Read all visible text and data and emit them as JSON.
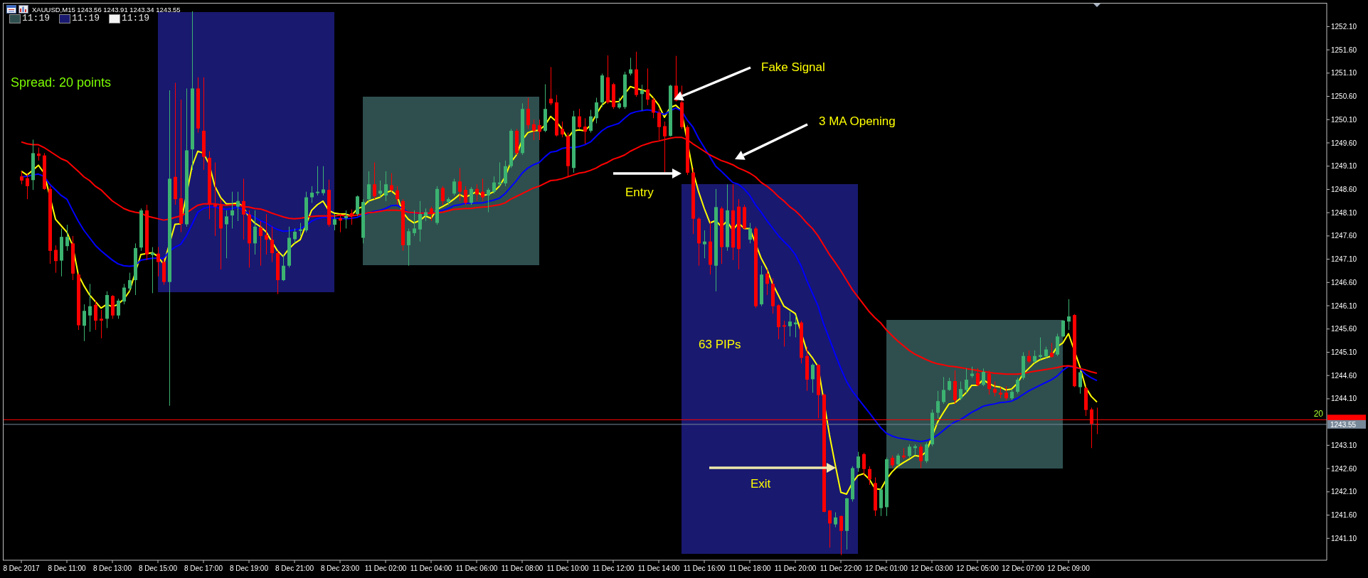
{
  "chart_data": {
    "type": "candlestick",
    "title": "XAUUSD,M15 1243.56 1243.91 1243.34 1243.55",
    "categories": [
      "8 Dec 2017",
      null,
      null,
      null,
      null,
      null,
      null,
      null,
      "8 Dec 11:00",
      null,
      null,
      null,
      null,
      null,
      null,
      null,
      "8 Dec 13:00",
      null,
      null,
      null,
      null,
      null,
      null,
      null,
      "8 Dec 15:00",
      null,
      null,
      null,
      null,
      null,
      null,
      null,
      "8 Dec 17:00",
      null,
      null,
      null,
      null,
      null,
      null,
      null,
      "8 Dec 19:00",
      null,
      null,
      null,
      null,
      null,
      null,
      null,
      "8 Dec 21:00",
      null,
      null,
      null,
      null,
      null,
      null,
      null,
      "8 Dec 23:00",
      null,
      null,
      null,
      null,
      null,
      null,
      null,
      "11 Dec 02:00",
      null,
      null,
      null,
      null,
      null,
      null,
      null,
      "11 Dec 04:00",
      null,
      null,
      null,
      null,
      null,
      null,
      null,
      "11 Dec 06:00",
      null,
      null,
      null,
      null,
      null,
      null,
      null,
      "11 Dec 08:00",
      null,
      null,
      null,
      null,
      null,
      null,
      null,
      "11 Dec 10:00",
      null,
      null,
      null,
      null,
      null,
      null,
      null,
      "11 Dec 12:00",
      null,
      null,
      null,
      null,
      null,
      null,
      null,
      "11 Dec 14:00",
      null,
      null,
      null,
      null,
      null,
      null,
      null,
      "11 Dec 16:00",
      null,
      null,
      null,
      null,
      null,
      null,
      null,
      "11 Dec 18:00",
      null,
      null,
      null,
      null,
      null,
      null,
      null,
      "11 Dec 20:00",
      null,
      null,
      null,
      null,
      null,
      null,
      null,
      "11 Dec 22:00",
      null,
      null,
      null,
      null,
      null,
      null,
      null,
      "12 Dec 01:00",
      null,
      null,
      null,
      null,
      null,
      null,
      null,
      "12 Dec 03:00",
      null,
      null,
      null,
      null,
      null,
      null,
      null,
      "12 Dec 05:00",
      null,
      null,
      null,
      null,
      null,
      null,
      null,
      "12 Dec 07:00",
      null,
      null,
      null,
      null,
      null,
      null,
      null,
      "12 Dec 09:00",
      null,
      null,
      null,
      null,
      null
    ],
    "ohlc": [
      [
        1248.88,
        1248.99,
        1248.71,
        1248.79
      ],
      [
        1248.84,
        1248.95,
        1248.39,
        1248.67
      ],
      [
        1248.8,
        1249.67,
        1248.59,
        1249.38
      ],
      [
        1249.37,
        1249.5,
        1249.22,
        1249.32
      ],
      [
        1249.33,
        1249.38,
        1248.59,
        1248.61
      ],
      [
        1248.61,
        1248.67,
        1247.0,
        1247.28
      ],
      [
        1247.3,
        1247.4,
        1246.81,
        1247.06
      ],
      [
        1247.07,
        1247.76,
        1246.73,
        1247.58
      ],
      [
        1247.38,
        1247.84,
        1247.28,
        1247.58
      ],
      [
        1247.44,
        1247.6,
        1246.65,
        1246.79
      ],
      [
        1246.77,
        1246.81,
        1245.58,
        1245.68
      ],
      [
        1245.67,
        1246.13,
        1245.34,
        1245.99
      ],
      [
        1245.89,
        1246.57,
        1245.54,
        1246.09
      ],
      [
        1246.12,
        1246.21,
        1245.58,
        1245.78
      ],
      [
        1245.82,
        1246.01,
        1245.4,
        1245.78
      ],
      [
        1245.82,
        1246.41,
        1245.62,
        1246.33
      ],
      [
        1246.31,
        1246.33,
        1245.82,
        1245.89
      ],
      [
        1245.89,
        1246.25,
        1245.82,
        1246.21
      ],
      [
        1246.19,
        1246.57,
        1246.13,
        1246.49
      ],
      [
        1246.47,
        1246.81,
        1246.41,
        1246.65
      ],
      [
        1246.65,
        1247.44,
        1246.33,
        1247.34
      ],
      [
        1247.35,
        1248.19,
        1247.28,
        1248.15
      ],
      [
        1248.15,
        1248.27,
        1247.08,
        1247.2
      ],
      [
        1247.19,
        1247.36,
        1246.37,
        1247.24
      ],
      [
        1247.22,
        1247.36,
        1246.73,
        1247.04
      ],
      [
        1247.04,
        1247.12,
        1246.55,
        1246.61
      ],
      [
        1246.61,
        1250.73,
        1243.95,
        1248.83
      ],
      [
        1248.87,
        1250.89,
        1248.27,
        1248.39
      ],
      [
        1248.41,
        1250.53,
        1247.68,
        1247.86
      ],
      [
        1247.85,
        1250.77,
        1247.8,
        1249.44
      ],
      [
        1249.46,
        1252.43,
        1249.02,
        1250.77
      ],
      [
        1250.77,
        1251.01,
        1249.82,
        1249.91
      ],
      [
        1249.86,
        1251.01,
        1249.02,
        1249.3
      ],
      [
        1249.28,
        1249.42,
        1247.96,
        1248.27
      ],
      [
        1248.27,
        1249.18,
        1247.6,
        1248.23
      ],
      [
        1248.25,
        1248.39,
        1246.88,
        1247.76
      ],
      [
        1247.85,
        1248.15,
        1247.12,
        1248.02
      ],
      [
        1248.04,
        1248.55,
        1247.76,
        1248.15
      ],
      [
        1248.23,
        1248.55,
        1247.92,
        1248.35
      ],
      [
        1248.35,
        1248.83,
        1247.52,
        1248.06
      ],
      [
        1248.06,
        1248.15,
        1246.92,
        1247.44
      ],
      [
        1247.44,
        1248.15,
        1247.2,
        1247.8
      ],
      [
        1247.78,
        1247.92,
        1246.96,
        1247.6
      ],
      [
        1247.62,
        1248.07,
        1247.2,
        1247.52
      ],
      [
        1247.52,
        1247.8,
        1247.04,
        1247.23
      ],
      [
        1247.23,
        1247.28,
        1246.35,
        1246.65
      ],
      [
        1246.65,
        1247.2,
        1246.63,
        1246.96
      ],
      [
        1246.96,
        1247.8,
        1246.92,
        1247.56
      ],
      [
        1247.53,
        1247.76,
        1247.44,
        1247.69
      ],
      [
        1247.71,
        1247.88,
        1247.6,
        1247.74
      ],
      [
        1247.72,
        1248.55,
        1247.68,
        1248.43
      ],
      [
        1248.43,
        1248.67,
        1248.31,
        1248.53
      ],
      [
        1248.52,
        1249.1,
        1248.47,
        1248.55
      ],
      [
        1248.52,
        1249.1,
        1248.47,
        1248.6
      ],
      [
        1248.59,
        1248.81,
        1247.8,
        1247.84
      ],
      [
        1247.84,
        1248.07,
        1247.72,
        1247.96
      ],
      [
        1247.98,
        1248.07,
        1247.68,
        1247.93
      ],
      [
        1247.98,
        1248.15,
        1247.76,
        1248.03
      ],
      [
        1248.09,
        1248.17,
        1247.84,
        1248.03
      ],
      [
        1248.07,
        1248.47,
        1248.03,
        1248.45
      ],
      [
        1247.56,
        1248.39,
        1247.44,
        1248.33
      ],
      [
        1248.39,
        1248.99,
        1248.31,
        1248.71
      ],
      [
        1248.71,
        1249.18,
        1248.39,
        1248.45
      ],
      [
        1248.51,
        1248.79,
        1248.43,
        1248.57
      ],
      [
        1248.47,
        1248.99,
        1248.35,
        1248.71
      ],
      [
        1248.69,
        1248.95,
        1248.55,
        1248.59
      ],
      [
        1248.58,
        1248.67,
        1248.27,
        1248.39
      ],
      [
        1248.35,
        1248.39,
        1247.28,
        1247.4
      ],
      [
        1247.4,
        1247.76,
        1246.96,
        1247.7
      ],
      [
        1247.66,
        1248.15,
        1247.6,
        1247.76
      ],
      [
        1247.74,
        1248.35,
        1247.48,
        1248.07
      ],
      [
        1248.03,
        1248.19,
        1247.92,
        1248.11
      ],
      [
        1248.19,
        1248.23,
        1247.92,
        1248.07
      ],
      [
        1247.88,
        1248.67,
        1247.84,
        1248.61
      ],
      [
        1248.63,
        1248.67,
        1248.27,
        1248.35
      ],
      [
        1248.33,
        1248.43,
        1248.27,
        1248.39
      ],
      [
        1248.51,
        1248.83,
        1248.47,
        1248.77
      ],
      [
        1248.77,
        1249.06,
        1248.35,
        1248.55
      ],
      [
        1248.59,
        1248.67,
        1248.27,
        1248.31
      ],
      [
        1248.31,
        1248.65,
        1248.27,
        1248.61
      ],
      [
        1248.61,
        1248.71,
        1248.35,
        1248.49
      ],
      [
        1248.55,
        1248.83,
        1248.35,
        1248.43
      ],
      [
        1248.47,
        1248.63,
        1248.11,
        1248.59
      ],
      [
        1248.55,
        1248.88,
        1248.51,
        1248.75
      ],
      [
        1248.71,
        1249.18,
        1248.67,
        1248.75
      ],
      [
        1248.73,
        1249.22,
        1248.67,
        1249.1
      ],
      [
        1249.1,
        1249.9,
        1249.06,
        1249.86
      ],
      [
        1249.86,
        1249.9,
        1249.34,
        1249.38
      ],
      [
        1249.38,
        1250.45,
        1249.34,
        1250.33
      ],
      [
        1250.33,
        1250.57,
        1249.9,
        1249.98
      ],
      [
        1250.0,
        1250.1,
        1249.66,
        1249.86
      ],
      [
        1249.98,
        1250.1,
        1249.66,
        1249.84
      ],
      [
        1249.86,
        1250.86,
        1249.83,
        1250.33
      ],
      [
        1250.55,
        1251.23,
        1250.41,
        1250.45
      ],
      [
        1250.47,
        1250.63,
        1249.74,
        1249.76
      ],
      [
        1249.9,
        1250.06,
        1249.72,
        1249.78
      ],
      [
        1249.75,
        1249.82,
        1248.88,
        1249.1
      ],
      [
        1249.06,
        1250.29,
        1248.96,
        1250.17
      ],
      [
        1250.17,
        1250.33,
        1249.9,
        1249.94
      ],
      [
        1249.95,
        1250.13,
        1249.58,
        1249.84
      ],
      [
        1249.86,
        1250.31,
        1249.82,
        1250.17
      ],
      [
        1250.13,
        1250.57,
        1250.02,
        1250.47
      ],
      [
        1250.47,
        1251.09,
        1250.37,
        1251.05
      ],
      [
        1251.01,
        1251.48,
        1250.44,
        1250.47
      ],
      [
        1250.86,
        1250.89,
        1250.33,
        1250.37
      ],
      [
        1250.36,
        1250.57,
        1250.33,
        1250.45
      ],
      [
        1250.37,
        1251.13,
        1250.33,
        1251.07
      ],
      [
        1251.09,
        1251.43,
        1251.05,
        1251.18
      ],
      [
        1251.18,
        1251.56,
        1250.59,
        1250.63
      ],
      [
        1250.65,
        1250.85,
        1250.29,
        1250.73
      ],
      [
        1250.75,
        1251.2,
        1250.41,
        1250.53
      ],
      [
        1250.53,
        1250.57,
        1250.13,
        1250.25
      ],
      [
        1250.25,
        1250.33,
        1249.66,
        1249.94
      ],
      [
        1249.96,
        1250.06,
        1248.95,
        1249.74
      ],
      [
        1249.75,
        1250.85,
        1249.74,
        1250.83
      ],
      [
        1250.83,
        1251.47,
        1250.49,
        1250.51
      ],
      [
        1250.47,
        1250.83,
        1249.9,
        1249.94
      ],
      [
        1249.94,
        1249.98,
        1248.91,
        1248.96
      ],
      [
        1248.96,
        1249.06,
        1247.64,
        1247.97
      ],
      [
        1247.97,
        1248.0,
        1246.96,
        1247.44
      ],
      [
        1247.42,
        1247.72,
        1247.12,
        1247.48
      ],
      [
        1247.48,
        1247.92,
        1246.77,
        1246.98
      ],
      [
        1246.96,
        1248.61,
        1246.41,
        1248.22
      ],
      [
        1248.19,
        1248.23,
        1247.0,
        1247.36
      ],
      [
        1247.36,
        1248.71,
        1247.28,
        1248.15
      ],
      [
        1248.15,
        1248.71,
        1247.08,
        1247.35
      ],
      [
        1248.23,
        1248.39,
        1246.88,
        1247.32
      ],
      [
        1248.22,
        1248.27,
        1247.74,
        1247.76
      ],
      [
        1247.52,
        1247.88,
        1247.44,
        1247.76
      ],
      [
        1247.76,
        1247.8,
        1246.05,
        1246.09
      ],
      [
        1246.13,
        1246.96,
        1246.09,
        1246.77
      ],
      [
        1246.79,
        1246.88,
        1246.33,
        1246.57
      ],
      [
        1246.57,
        1246.69,
        1245.93,
        1246.09
      ],
      [
        1246.11,
        1246.13,
        1245.38,
        1245.64
      ],
      [
        1245.68,
        1245.78,
        1245.22,
        1245.65
      ],
      [
        1245.66,
        1245.97,
        1245.44,
        1245.76
      ],
      [
        1245.7,
        1245.89,
        1245.42,
        1245.74
      ],
      [
        1245.74,
        1245.78,
        1244.86,
        1244.98
      ],
      [
        1245.02,
        1245.22,
        1244.27,
        1244.51
      ],
      [
        1244.52,
        1244.86,
        1244.23,
        1244.83
      ],
      [
        1244.83,
        1244.84,
        1243.68,
        1244.18
      ],
      [
        1244.19,
        1244.21,
        1241.66,
        1241.67
      ],
      [
        1241.7,
        1241.71,
        1240.9,
        1241.42
      ],
      [
        1241.4,
        1241.66,
        1241.34,
        1241.55
      ],
      [
        1241.58,
        1241.59,
        1240.74,
        1241.26
      ],
      [
        1241.26,
        1241.97,
        1240.86,
        1241.96
      ],
      [
        1241.94,
        1242.65,
        1241.89,
        1242.61
      ],
      [
        1242.61,
        1242.96,
        1242.53,
        1242.86
      ],
      [
        1242.91,
        1242.94,
        1242.45,
        1242.59
      ],
      [
        1242.59,
        1242.65,
        1242.25,
        1242.37
      ],
      [
        1242.29,
        1242.41,
        1241.58,
        1241.7
      ],
      [
        1241.75,
        1242.19,
        1241.58,
        1242.15
      ],
      [
        1241.77,
        1242.84,
        1241.58,
        1242.8
      ],
      [
        1242.83,
        1242.88,
        1242.62,
        1242.67
      ],
      [
        1242.69,
        1242.92,
        1242.65,
        1242.88
      ],
      [
        1242.88,
        1243.04,
        1242.8,
        1242.84
      ],
      [
        1242.87,
        1243.12,
        1242.83,
        1243.07
      ],
      [
        1243.04,
        1243.12,
        1242.88,
        1243.08
      ],
      [
        1243.07,
        1243.12,
        1242.61,
        1242.76
      ],
      [
        1242.76,
        1243.16,
        1242.72,
        1243.12
      ],
      [
        1243.12,
        1243.87,
        1243.08,
        1243.8
      ],
      [
        1243.8,
        1244.27,
        1243.68,
        1244.05
      ],
      [
        1244.03,
        1244.57,
        1243.99,
        1244.29
      ],
      [
        1244.29,
        1244.55,
        1244.27,
        1244.48
      ],
      [
        1244.48,
        1244.71,
        1243.99,
        1244.07
      ],
      [
        1244.11,
        1244.47,
        1244.07,
        1244.31
      ],
      [
        1244.29,
        1244.75,
        1244.23,
        1244.51
      ],
      [
        1244.59,
        1244.79,
        1244.55,
        1244.64
      ],
      [
        1244.65,
        1244.76,
        1244.37,
        1244.39
      ],
      [
        1244.4,
        1244.75,
        1244.37,
        1244.68
      ],
      [
        1244.64,
        1244.71,
        1244.19,
        1244.31
      ],
      [
        1244.31,
        1244.47,
        1244.15,
        1244.23
      ],
      [
        1244.23,
        1244.35,
        1244.11,
        1244.19
      ],
      [
        1244.23,
        1244.37,
        1244.07,
        1244.11
      ],
      [
        1244.11,
        1244.31,
        1244.07,
        1244.25
      ],
      [
        1244.25,
        1244.55,
        1244.21,
        1244.51
      ],
      [
        1244.55,
        1245.1,
        1244.51,
        1245.02
      ],
      [
        1245.02,
        1245.14,
        1244.87,
        1244.9
      ],
      [
        1244.9,
        1245.14,
        1244.87,
        1245.02
      ],
      [
        1245.0,
        1245.42,
        1244.94,
        1245.04
      ],
      [
        1245.01,
        1245.22,
        1244.98,
        1245.16
      ],
      [
        1245.09,
        1245.3,
        1244.98,
        1245.0
      ],
      [
        1245.05,
        1245.5,
        1245.02,
        1245.44
      ],
      [
        1245.44,
        1245.79,
        1245.42,
        1245.78
      ],
      [
        1245.76,
        1246.24,
        1245.58,
        1245.87
      ],
      [
        1245.9,
        1245.92,
        1244.35,
        1244.37
      ],
      [
        1244.35,
        1244.71,
        1244.21,
        1244.67
      ],
      [
        1244.33,
        1244.37,
        1243.73,
        1243.86
      ],
      [
        1243.87,
        1243.91,
        1243.04,
        1243.56
      ],
      [
        1243.56,
        1243.91,
        1243.34,
        1243.55
      ]
    ],
    "series": [
      {
        "type": "line",
        "color": "#ffff00",
        "values": [
          1248.99,
          1248.91,
          1249.01,
          1249.12,
          1248.95,
          null,
          1247.96,
          1247.82,
          1247.68,
          1247.4,
          1246.77,
          1246.53,
          1246.33,
          1246.19,
          1246.05,
          1246.13,
          1246.08,
          1246.13,
          1246.24,
          1246.41,
          null,
          1247.2,
          1247.22,
          1247.24,
          1247.16,
          1246.99,
          null,
          1247.85,
          1247.86,
          null,
          1249.1,
          1249.42,
          1249.38,
          1249.14,
          1248.67,
          1248.43,
          1248.29,
          1248.29,
          1248.31,
          1248.23,
          1248.0,
          1247.88,
          1247.8,
          1247.69,
          1247.48,
          1247.28,
          1247.16,
          1247.32,
          1247.44,
          1247.52,
          null,
          1248.15,
          1248.27,
          1248.35,
          1248.15,
          1248.09,
          1248.07,
          1248.07,
          1248.03,
          1248.18,
          1248.23,
          1248.35,
          1248.39,
          1248.43,
          1248.53,
          1248.57,
          1248.47,
          1248.11,
          1247.96,
          1247.88,
          1247.93,
          1248.03,
          1247.98,
          1248.17,
          1248.23,
          1248.3,
          1248.39,
          1248.49,
          1248.43,
          1248.49,
          1248.55,
          1248.47,
          1248.49,
          1248.55,
          1248.67,
          1248.87,
          1249.18,
          1249.34,
          1249.66,
          1249.82,
          1249.86,
          1249.87,
          1249.98,
          1250.17,
          1250.06,
          1249.9,
          1249.7,
          1249.86,
          1249.88,
          1249.86,
          1249.98,
          1250.21,
          1250.41,
          1250.51,
          1250.48,
          1250.49,
          1250.65,
          1250.81,
          1250.77,
          1250.74,
          1250.7,
          1250.57,
          1250.41,
          1250.15,
          1250.36,
          1250.41,
          1250.29,
          null,
          1248.99,
          1248.55,
          1248.19,
          1247.88,
          1247.93,
          1247.8,
          1247.92,
          1247.72,
          1247.88,
          1247.76,
          1247.76,
          null,
          1247.12,
          1246.89,
          1246.57,
          1246.33,
          1246.09,
          1246.01,
          1245.93,
          null,
          1245.14,
          1244.98,
          1244.79,
          null,
          1243.32,
          1242.69,
          1242.09,
          1242.05,
          1242.29,
          1242.45,
          1242.49,
          1242.37,
          1242.17,
          1242.15,
          1242.37,
          1242.53,
          1242.65,
          1242.73,
          1242.8,
          1242.88,
          1242.86,
          1242.96,
          null,
          1243.6,
          1243.8,
          1243.99,
          1244.01,
          1244.11,
          1244.23,
          1244.39,
          1244.39,
          1244.51,
          1244.43,
          1244.37,
          1244.35,
          1244.29,
          1244.31,
          1244.43,
          1244.63,
          1244.75,
          1244.87,
          1244.94,
          1244.98,
          1245.02,
          1245.22,
          1245.3,
          1245.5,
          null,
          1244.79,
          1244.35,
          1244.15,
          1244.03
        ]
      },
      {
        "type": "line",
        "color": "#0000ff",
        "values": [
          1248.87,
          1248.88,
          1248.91,
          1248.93,
          1248.88,
          1248.71,
          1248.59,
          1248.47,
          1248.39,
          1248.15,
          1247.92,
          1247.72,
          1247.56,
          1247.4,
          1247.28,
          1247.18,
          1247.08,
          1247.0,
          1246.96,
          1246.95,
          1246.96,
          1247.08,
          1247.1,
          1247.12,
          1247.12,
          1247.12,
          1247.27,
          1247.36,
          1247.42,
          1247.6,
          1247.85,
          1248.11,
          1248.19,
          1248.22,
          1248.22,
          1248.19,
          1248.17,
          1248.19,
          1248.22,
          1248.15,
          1248.07,
          1248.0,
          1247.93,
          1247.88,
          1247.8,
          1247.74,
          1247.7,
          1247.71,
          1247.73,
          1247.76,
          1247.82,
          1247.92,
          1247.97,
          1248.0,
          1248.0,
          1247.98,
          1247.98,
          1247.97,
          1247.98,
          1248.0,
          1248.05,
          1248.09,
          1248.13,
          1248.15,
          1248.19,
          1248.25,
          1248.26,
          1248.19,
          1248.11,
          1248.09,
          1248.09,
          1248.09,
          1248.09,
          1248.12,
          1248.15,
          1248.19,
          1248.25,
          1248.27,
          1248.3,
          1248.3,
          1248.31,
          1248.31,
          1248.34,
          1248.37,
          1248.41,
          1248.51,
          1248.65,
          1248.79,
          1248.95,
          1249.06,
          1249.13,
          1249.18,
          1249.3,
          1249.4,
          1249.42,
          1249.48,
          1249.5,
          1249.5,
          1249.52,
          1249.56,
          1249.62,
          1249.74,
          1249.86,
          1249.94,
          1249.98,
          1250.02,
          1250.13,
          1250.23,
          1250.27,
          1250.29,
          1250.31,
          1250.29,
          1250.25,
          1250.21,
          1250.29,
          1250.35,
          1250.29,
          1250.09,
          1249.94,
          1249.7,
          1249.5,
          1249.3,
          1249.1,
          1248.99,
          1248.87,
          1248.75,
          1248.71,
          1248.61,
          1248.47,
          1248.27,
          1248.11,
          1247.93,
          1247.77,
          1247.61,
          1247.48,
          1247.36,
          1247.2,
          1246.96,
          1246.65,
          1246.37,
          1246.09,
          1245.7,
          1245.38,
          1245.06,
          1244.75,
          1244.47,
          1244.27,
          1244.11,
          1243.95,
          1243.8,
          1243.64,
          1243.48,
          1243.36,
          1243.3,
          1243.26,
          1243.24,
          1243.22,
          1243.2,
          1243.18,
          1243.2,
          1243.24,
          1243.32,
          1243.42,
          1243.52,
          1243.6,
          1243.65,
          1243.73,
          1243.81,
          1243.87,
          1243.94,
          1243.97,
          1243.99,
          1244.02,
          1244.03,
          1244.05,
          1244.11,
          1244.19,
          1244.27,
          1244.33,
          1244.39,
          1244.45,
          1244.51,
          1244.59,
          1244.71,
          1244.8,
          null,
          1244.75,
          1244.63,
          1244.55,
          1244.49
        ]
      },
      {
        "type": "line",
        "color": "#ff0000",
        "values": [
          1249.62,
          1249.58,
          1249.56,
          1249.56,
          1249.5,
          1249.42,
          1249.34,
          1249.26,
          1249.21,
          1249.1,
          1248.99,
          1248.87,
          1248.79,
          1248.67,
          1248.59,
          1248.47,
          1248.35,
          1248.27,
          1248.19,
          1248.14,
          1248.11,
          1248.09,
          1248.03,
          1248.0,
          1247.97,
          1247.94,
          1247.96,
          1248.0,
          1248.03,
          1248.09,
          1248.18,
          1248.26,
          1248.29,
          1248.29,
          1248.29,
          1248.27,
          1248.26,
          1248.27,
          1248.27,
          1248.23,
          1248.22,
          1248.19,
          1248.18,
          1248.14,
          1248.09,
          1248.05,
          1248.01,
          1247.98,
          1247.97,
          1247.98,
          1248.0,
          1248.02,
          1248.03,
          1248.03,
          1248.03,
          1248.03,
          1248.05,
          1248.03,
          1248.03,
          1248.05,
          1248.07,
          1248.1,
          1248.11,
          1248.13,
          1248.15,
          1248.15,
          1248.15,
          1248.14,
          1248.11,
          1248.1,
          1248.09,
          1248.09,
          1248.09,
          1248.1,
          1248.11,
          1248.14,
          1248.17,
          1248.18,
          1248.19,
          1248.19,
          1248.21,
          1248.22,
          1248.23,
          1248.25,
          1248.27,
          1248.31,
          1248.39,
          1248.45,
          1248.51,
          1248.57,
          1248.63,
          1248.67,
          1248.73,
          1248.79,
          1248.8,
          1248.83,
          1248.87,
          1248.91,
          1248.95,
          1248.97,
          1249.01,
          1249.06,
          1249.13,
          1249.18,
          1249.25,
          1249.29,
          1249.34,
          1249.42,
          1249.48,
          1249.54,
          1249.58,
          1249.62,
          1249.64,
          1249.67,
          1249.7,
          1249.72,
          1249.72,
          1249.67,
          1249.58,
          1249.5,
          1249.42,
          1249.34,
          1249.28,
          1249.22,
          1249.18,
          1249.13,
          1249.06,
          1249.01,
          1248.95,
          1248.87,
          1248.75,
          1248.67,
          1248.57,
          1248.45,
          1248.35,
          1248.23,
          1248.14,
          1248.02,
          1247.88,
          1247.76,
          1247.6,
          1247.4,
          1247.2,
          1247.03,
          1246.85,
          1246.65,
          1246.45,
          1246.29,
          1246.13,
          1245.97,
          1245.84,
          1245.73,
          1245.58,
          1245.46,
          1245.34,
          1245.24,
          1245.14,
          1245.06,
          1245.0,
          1244.94,
          1244.89,
          1244.85,
          1244.83,
          1244.8,
          1244.79,
          1244.77,
          1244.75,
          1244.73,
          1244.71,
          1244.68,
          1244.67,
          1244.65,
          1244.64,
          1244.63,
          1244.63,
          1244.63,
          1244.64,
          1244.67,
          1244.69,
          1244.71,
          1244.73,
          1244.75,
          1244.77,
          1244.8,
          1244.81,
          1244.79,
          1244.75,
          1244.72,
          1244.68,
          1244.65
        ]
      }
    ],
    "ylim": [
      1240.63,
      1252.61
    ],
    "yticks": [
      {
        "value": 1241.1,
        "label": "1241.10"
      },
      {
        "value": 1241.6,
        "label": "1241.60"
      },
      {
        "value": 1242.1,
        "label": "1242.10"
      },
      {
        "value": 1242.6,
        "label": "1242.60"
      },
      {
        "value": 1243.1,
        "label": "1243.10"
      },
      {
        "value": 1244.1,
        "label": "1244.10"
      },
      {
        "value": 1244.6,
        "label": "1244.60"
      },
      {
        "value": 1245.1,
        "label": "1245.10"
      },
      {
        "value": 1245.6,
        "label": "1245.60"
      },
      {
        "value": 1246.1,
        "label": "1246.10"
      },
      {
        "value": 1246.6,
        "label": "1246.60"
      },
      {
        "value": 1247.1,
        "label": "1247.10"
      },
      {
        "value": 1247.6,
        "label": "1247.60"
      },
      {
        "value": 1248.1,
        "label": "1248.10"
      },
      {
        "value": 1248.6,
        "label": "1248.60"
      },
      {
        "value": 1249.1,
        "label": "1249.10"
      },
      {
        "value": 1249.6,
        "label": "1249.60"
      },
      {
        "value": 1250.1,
        "label": "1250.10"
      },
      {
        "value": 1250.6,
        "label": "1250.60"
      },
      {
        "value": 1251.1,
        "label": "1251.10"
      },
      {
        "value": 1251.6,
        "label": "1251.60"
      },
      {
        "value": 1252.1,
        "label": "1252.10"
      }
    ],
    "ref_lines": [
      {
        "axis": "y",
        "value": 1243.65,
        "color": "#ff0000"
      },
      {
        "axis": "y",
        "value": 1243.55,
        "label": "1243.55",
        "color": "#778899"
      }
    ],
    "annotations": [
      "11:19",
      "11:19",
      "11:19",
      "Spread: 20 points",
      "Fake Signal",
      "3 MA Opening",
      "Entry",
      "63 PIPs",
      "Exit",
      {
        "text": "20",
        "y": 1243.65
      }
    ]
  }
}
